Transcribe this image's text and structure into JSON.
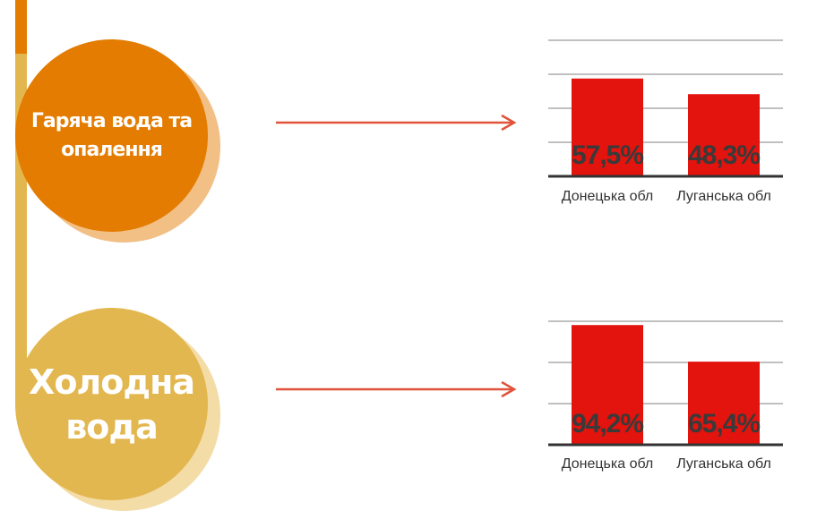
{
  "colors": {
    "orange": "#e37c00",
    "orange_shadow": "#f2bf85",
    "gold": "#e3b74f",
    "gold_shadow": "#f3dca6",
    "bar": "#e3130d",
    "arrow": "#e0533a",
    "grid": "#9a9a9a",
    "axis": "#333333",
    "value_text": "#3a3a3a"
  },
  "circles": [
    {
      "label_line1": "Гаряча вода та",
      "label_line2": "опалення"
    },
    {
      "label_line1": "Холодна",
      "label_line2": "вода"
    }
  ],
  "chart_data": [
    {
      "type": "bar",
      "categories": [
        "Донецька обл",
        "Луганська обл"
      ],
      "values": [
        57.5,
        48.3
      ],
      "value_labels": [
        "57,5%",
        "48,3%"
      ],
      "ylim": [
        0,
        60
      ],
      "grid": true
    },
    {
      "type": "bar",
      "categories": [
        "Донецька обл",
        "Луганська обл"
      ],
      "values": [
        94.2,
        65.4
      ],
      "value_labels": [
        "94,2%",
        "65,4%"
      ],
      "ylim": [
        0,
        100
      ],
      "grid": true
    }
  ]
}
